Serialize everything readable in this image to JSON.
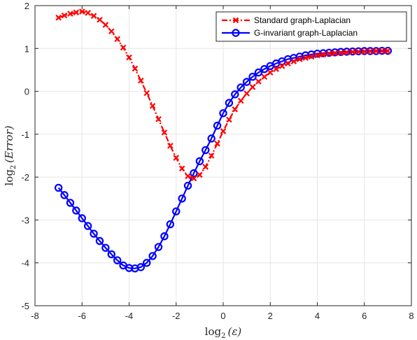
{
  "chart_data": {
    "type": "line",
    "title": "",
    "xlabel": {
      "base": "log",
      "subscript": "2",
      "arg": "(ε)"
    },
    "ylabel": {
      "base": "log",
      "subscript": "2",
      "arg": "(Error)"
    },
    "xlim": [
      -8,
      8
    ],
    "ylim": [
      -5,
      2
    ],
    "xticks": [
      -8,
      -6,
      -4,
      -2,
      0,
      2,
      4,
      6,
      8
    ],
    "yticks": [
      -5,
      -4,
      -3,
      -2,
      -1,
      0,
      1,
      2
    ],
    "grid": true,
    "legend_position": "top-right",
    "series": [
      {
        "name": "Standard graph-Laplacian",
        "color": "#ff0000",
        "line_style": "dash-dot",
        "marker": "x",
        "x": [
          -7.0,
          -6.75,
          -6.5,
          -6.25,
          -6.0,
          -5.75,
          -5.5,
          -5.25,
          -5.0,
          -4.75,
          -4.5,
          -4.25,
          -4.0,
          -3.75,
          -3.5,
          -3.25,
          -3.0,
          -2.75,
          -2.5,
          -2.25,
          -2.0,
          -1.75,
          -1.5,
          -1.25,
          -1.0,
          -0.75,
          -0.5,
          -0.25,
          0.0,
          0.25,
          0.5,
          0.75,
          1.0,
          1.25,
          1.5,
          1.75,
          2.0,
          2.25,
          2.5,
          2.75,
          3.0,
          3.25,
          3.5,
          3.75,
          4.0,
          4.25,
          4.5,
          4.75,
          5.0,
          5.25,
          5.5,
          5.75,
          6.0,
          6.25,
          6.5,
          6.75,
          7.0
        ],
        "y": [
          1.72,
          1.77,
          1.81,
          1.84,
          1.86,
          1.83,
          1.76,
          1.67,
          1.55,
          1.4,
          1.22,
          1.02,
          0.79,
          0.53,
          0.25,
          -0.04,
          -0.34,
          -0.65,
          -0.96,
          -1.27,
          -1.55,
          -1.8,
          -1.98,
          -2.03,
          -1.95,
          -1.76,
          -1.5,
          -1.22,
          -0.93,
          -0.66,
          -0.42,
          -0.22,
          -0.05,
          0.1,
          0.23,
          0.34,
          0.44,
          0.52,
          0.59,
          0.65,
          0.7,
          0.75,
          0.78,
          0.81,
          0.84,
          0.86,
          0.88,
          0.89,
          0.9,
          0.91,
          0.92,
          0.925,
          0.93,
          0.935,
          0.94,
          0.94,
          0.94
        ]
      },
      {
        "name": "G-invariant graph-Laplacian",
        "color": "#0000ff",
        "line_style": "solid",
        "marker": "o",
        "x": [
          -7.0,
          -6.75,
          -6.5,
          -6.25,
          -6.0,
          -5.75,
          -5.5,
          -5.25,
          -5.0,
          -4.75,
          -4.5,
          -4.25,
          -4.0,
          -3.75,
          -3.5,
          -3.25,
          -3.0,
          -2.75,
          -2.5,
          -2.25,
          -2.0,
          -1.75,
          -1.5,
          -1.25,
          -1.0,
          -0.75,
          -0.5,
          -0.25,
          0.0,
          0.25,
          0.5,
          0.75,
          1.0,
          1.25,
          1.5,
          1.75,
          2.0,
          2.25,
          2.5,
          2.75,
          3.0,
          3.25,
          3.5,
          3.75,
          4.0,
          4.25,
          4.5,
          4.75,
          5.0,
          5.25,
          5.5,
          5.75,
          6.0,
          6.25,
          6.5,
          6.75,
          7.0
        ],
        "y": [
          -2.25,
          -2.42,
          -2.6,
          -2.78,
          -2.96,
          -3.14,
          -3.32,
          -3.49,
          -3.65,
          -3.8,
          -3.94,
          -4.06,
          -4.12,
          -4.13,
          -4.1,
          -4.0,
          -3.84,
          -3.63,
          -3.38,
          -3.1,
          -2.8,
          -2.5,
          -2.2,
          -1.91,
          -1.63,
          -1.37,
          -1.1,
          -0.8,
          -0.51,
          -0.27,
          -0.07,
          0.09,
          0.22,
          0.34,
          0.44,
          0.52,
          0.59,
          0.65,
          0.7,
          0.75,
          0.78,
          0.81,
          0.84,
          0.86,
          0.88,
          0.89,
          0.9,
          0.91,
          0.92,
          0.925,
          0.93,
          0.935,
          0.94,
          0.94,
          0.94,
          0.945,
          0.945
        ]
      }
    ]
  }
}
